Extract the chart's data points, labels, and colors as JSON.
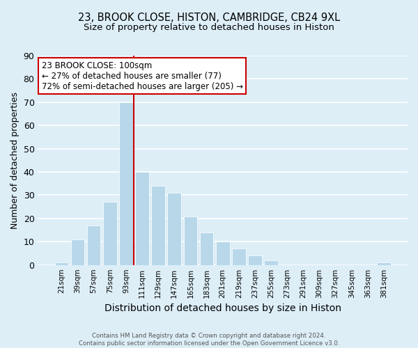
{
  "title": "23, BROOK CLOSE, HISTON, CAMBRIDGE, CB24 9XL",
  "subtitle": "Size of property relative to detached houses in Histon",
  "xlabel": "Distribution of detached houses by size in Histon",
  "ylabel": "Number of detached properties",
  "bar_labels": [
    "21sqm",
    "39sqm",
    "57sqm",
    "75sqm",
    "93sqm",
    "111sqm",
    "129sqm",
    "147sqm",
    "165sqm",
    "183sqm",
    "201sqm",
    "219sqm",
    "237sqm",
    "255sqm",
    "273sqm",
    "291sqm",
    "309sqm",
    "327sqm",
    "345sqm",
    "363sqm",
    "381sqm"
  ],
  "bar_values": [
    1,
    11,
    17,
    27,
    70,
    40,
    34,
    31,
    21,
    14,
    10,
    7,
    4,
    2,
    0,
    0,
    0,
    0,
    0,
    0,
    1
  ],
  "bar_color": "#b8d8ea",
  "vline_color": "#cc0000",
  "vline_x_index": 4,
  "ylim": [
    0,
    90
  ],
  "yticks": [
    0,
    10,
    20,
    30,
    40,
    50,
    60,
    70,
    80,
    90
  ],
  "annotation_title": "23 BROOK CLOSE: 100sqm",
  "annotation_line1": "← 27% of detached houses are smaller (77)",
  "annotation_line2": "72% of semi-detached houses are larger (205) →",
  "annotation_box_facecolor": "#ffffff",
  "annotation_box_edgecolor": "#cc0000",
  "footer_line1": "Contains HM Land Registry data © Crown copyright and database right 2024.",
  "footer_line2": "Contains public sector information licensed under the Open Government Licence v3.0.",
  "bg_color": "#ddeef7",
  "grid_color": "#ffffff",
  "title_fontsize": 10.5,
  "subtitle_fontsize": 9.5,
  "ylabel_fontsize": 9,
  "xlabel_fontsize": 10
}
